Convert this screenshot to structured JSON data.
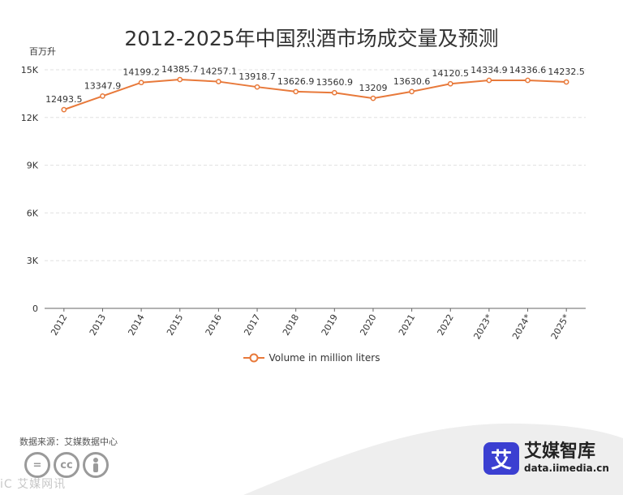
{
  "title": "2012-2025年中国烈酒市场成交量及预测",
  "unit_label": "百万升",
  "source_text": "数据来源：艾媒数据中心",
  "watermark_text": "iC  艾媒网讯",
  "brand": {
    "logo_char": "艾",
    "name": "艾媒智库",
    "url": "data.iimedia.cn",
    "logo_color": "#3b3fd1"
  },
  "license_icons": [
    "=",
    "cc",
    "person"
  ],
  "chart_data": {
    "type": "line",
    "title": "2012-2025年中国烈酒市场成交量及预测",
    "ylabel": "百万升",
    "xlabel": "",
    "categories": [
      "2012",
      "2013",
      "2014",
      "2015",
      "2016",
      "2017",
      "2018",
      "2019",
      "2020",
      "2021",
      "2022",
      "2023*",
      "2024*",
      "2025*"
    ],
    "series": [
      {
        "name": "Volume in million liters",
        "values": [
          12493.5,
          13347.9,
          14199.2,
          14385.7,
          14257.1,
          13918.7,
          13626.9,
          13560.9,
          13209,
          13630.6,
          14120.5,
          14334.9,
          14336.6,
          14232.5
        ],
        "labels": [
          "12493.5",
          "13347.9",
          "14199.2",
          "14385.7",
          "14257.1",
          "13918.7",
          "13626.9",
          "13560.9",
          "13209",
          "13630.6",
          "14120.5",
          "14334.9",
          "14336.6",
          "14232.5"
        ],
        "color": "#e8793a"
      }
    ],
    "ylim": [
      0,
      15000
    ],
    "yticks": [
      0,
      3000,
      6000,
      9000,
      12000,
      15000
    ],
    "ytick_labels": [
      "0",
      "3K",
      "6K",
      "9K",
      "12K",
      "15K"
    ],
    "grid": true,
    "legend_position": "bottom"
  }
}
